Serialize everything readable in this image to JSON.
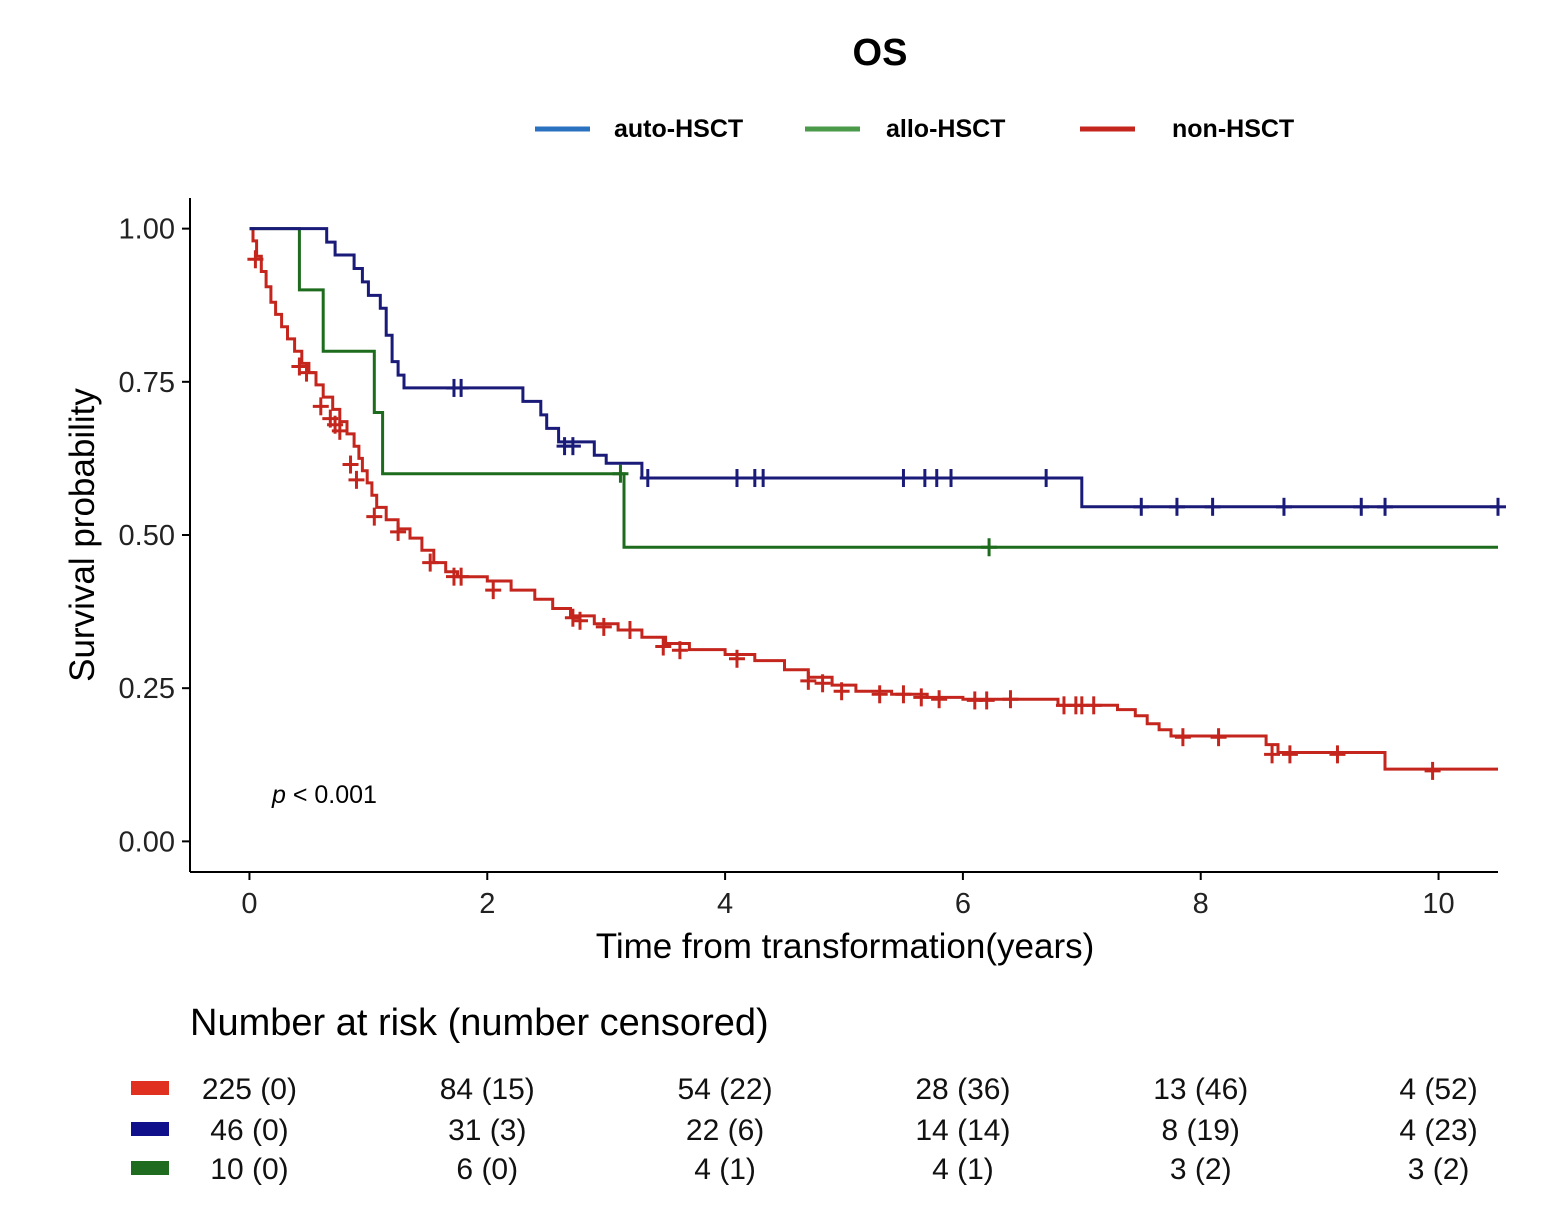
{
  "chart_data": {
    "type": "line",
    "title": "OS",
    "xlabel": "Time from transformation(years)",
    "ylabel": "Survival probability",
    "xlim": [
      -0.5,
      10.5
    ],
    "ylim": [
      -0.05,
      1.05
    ],
    "x_ticks": [
      0,
      2,
      4,
      6,
      8,
      10
    ],
    "x_tick_labels": [
      "0",
      "2",
      "4",
      "6",
      "8",
      "10"
    ],
    "y_ticks": [
      0,
      0.25,
      0.5,
      0.75,
      1.0
    ],
    "y_tick_labels": [
      "0.00",
      "0.25",
      "0.50",
      "0.75",
      "1.00"
    ],
    "grid": false,
    "legend_position": "top",
    "annotation": {
      "italic": "p",
      "text": " < 0.001"
    },
    "legend": [
      {
        "label": "auto-HSCT",
        "color": "#2a72c0"
      },
      {
        "label": "allo-HSCT",
        "color": "#4a9a4a"
      },
      {
        "label": "non-HSCT",
        "color": "#c4261e"
      }
    ],
    "series": [
      {
        "name": "auto-HSCT",
        "color": "#1a1a78",
        "steps": [
          [
            0,
            1.0
          ],
          [
            0.65,
            1.0
          ],
          [
            0.65,
            0.978
          ],
          [
            0.72,
            0.978
          ],
          [
            0.72,
            0.957
          ],
          [
            0.88,
            0.957
          ],
          [
            0.88,
            0.935
          ],
          [
            0.95,
            0.935
          ],
          [
            0.95,
            0.913
          ],
          [
            1.0,
            0.913
          ],
          [
            1.0,
            0.891
          ],
          [
            1.1,
            0.891
          ],
          [
            1.1,
            0.87
          ],
          [
            1.15,
            0.87
          ],
          [
            1.15,
            0.826
          ],
          [
            1.2,
            0.826
          ],
          [
            1.2,
            0.783
          ],
          [
            1.25,
            0.783
          ],
          [
            1.25,
            0.761
          ],
          [
            1.3,
            0.761
          ],
          [
            1.3,
            0.74
          ],
          [
            2.3,
            0.74
          ],
          [
            2.3,
            0.718
          ],
          [
            2.45,
            0.718
          ],
          [
            2.45,
            0.696
          ],
          [
            2.5,
            0.696
          ],
          [
            2.5,
            0.674
          ],
          [
            2.6,
            0.674
          ],
          [
            2.6,
            0.652
          ],
          [
            2.9,
            0.652
          ],
          [
            2.9,
            0.63
          ],
          [
            3.0,
            0.63
          ],
          [
            3.0,
            0.617
          ],
          [
            3.3,
            0.617
          ],
          [
            3.3,
            0.593
          ],
          [
            7.0,
            0.593
          ],
          [
            7.0,
            0.546
          ],
          [
            10.5,
            0.546
          ]
        ],
        "censored": [
          [
            1.72,
            0.74
          ],
          [
            1.78,
            0.74
          ],
          [
            2.65,
            0.645
          ],
          [
            2.72,
            0.645
          ],
          [
            3.35,
            0.593
          ],
          [
            4.1,
            0.593
          ],
          [
            4.25,
            0.593
          ],
          [
            4.32,
            0.593
          ],
          [
            5.5,
            0.593
          ],
          [
            5.68,
            0.593
          ],
          [
            5.78,
            0.593
          ],
          [
            5.9,
            0.593
          ],
          [
            6.7,
            0.593
          ],
          [
            7.5,
            0.546
          ],
          [
            7.8,
            0.546
          ],
          [
            8.1,
            0.546
          ],
          [
            8.7,
            0.546
          ],
          [
            9.35,
            0.546
          ],
          [
            9.55,
            0.546
          ],
          [
            10.5,
            0.546
          ]
        ]
      },
      {
        "name": "allo-HSCT",
        "color": "#1d6b1d",
        "steps": [
          [
            0,
            1.0
          ],
          [
            0.42,
            1.0
          ],
          [
            0.42,
            0.9
          ],
          [
            0.62,
            0.9
          ],
          [
            0.62,
            0.8
          ],
          [
            1.05,
            0.8
          ],
          [
            1.05,
            0.7
          ],
          [
            1.12,
            0.7
          ],
          [
            1.12,
            0.6
          ],
          [
            3.15,
            0.6
          ],
          [
            3.15,
            0.48
          ],
          [
            10.5,
            0.48
          ]
        ],
        "censored": [
          [
            3.12,
            0.6
          ],
          [
            6.22,
            0.48
          ]
        ]
      },
      {
        "name": "non-HSCT",
        "color": "#c4261e",
        "steps": [
          [
            0,
            1.0
          ],
          [
            0.03,
            0.98
          ],
          [
            0.06,
            0.955
          ],
          [
            0.1,
            0.93
          ],
          [
            0.14,
            0.905
          ],
          [
            0.18,
            0.88
          ],
          [
            0.22,
            0.86
          ],
          [
            0.27,
            0.84
          ],
          [
            0.32,
            0.82
          ],
          [
            0.38,
            0.8
          ],
          [
            0.44,
            0.78
          ],
          [
            0.5,
            0.765
          ],
          [
            0.56,
            0.745
          ],
          [
            0.62,
            0.725
          ],
          [
            0.7,
            0.705
          ],
          [
            0.76,
            0.685
          ],
          [
            0.82,
            0.665
          ],
          [
            0.88,
            0.645
          ],
          [
            0.92,
            0.625
          ],
          [
            0.95,
            0.605
          ],
          [
            0.99,
            0.585
          ],
          [
            1.03,
            0.565
          ],
          [
            1.07,
            0.545
          ],
          [
            1.15,
            0.525
          ],
          [
            1.25,
            0.51
          ],
          [
            1.35,
            0.495
          ],
          [
            1.45,
            0.475
          ],
          [
            1.55,
            0.455
          ],
          [
            1.65,
            0.44
          ],
          [
            1.75,
            0.432
          ],
          [
            2.0,
            0.425
          ],
          [
            2.2,
            0.41
          ],
          [
            2.4,
            0.395
          ],
          [
            2.55,
            0.38
          ],
          [
            2.7,
            0.368
          ],
          [
            2.9,
            0.355
          ],
          [
            3.1,
            0.345
          ],
          [
            3.3,
            0.333
          ],
          [
            3.5,
            0.323
          ],
          [
            3.7,
            0.313
          ],
          [
            4.0,
            0.305
          ],
          [
            4.25,
            0.295
          ],
          [
            4.5,
            0.28
          ],
          [
            4.7,
            0.268
          ],
          [
            4.9,
            0.255
          ],
          [
            5.1,
            0.245
          ],
          [
            5.4,
            0.24
          ],
          [
            5.7,
            0.235
          ],
          [
            6.0,
            0.232
          ],
          [
            6.4,
            0.232
          ],
          [
            6.8,
            0.222
          ],
          [
            7.15,
            0.222
          ],
          [
            7.3,
            0.215
          ],
          [
            7.45,
            0.205
          ],
          [
            7.55,
            0.192
          ],
          [
            7.65,
            0.182
          ],
          [
            7.75,
            0.172
          ],
          [
            8.4,
            0.172
          ],
          [
            8.55,
            0.158
          ],
          [
            8.65,
            0.145
          ],
          [
            9.55,
            0.145
          ],
          [
            9.55,
            0.118
          ],
          [
            10.5,
            0.118
          ]
        ],
        "censored": [
          [
            0.05,
            0.95
          ],
          [
            0.42,
            0.775
          ],
          [
            0.48,
            0.765
          ],
          [
            0.6,
            0.71
          ],
          [
            0.68,
            0.69
          ],
          [
            0.72,
            0.68
          ],
          [
            0.76,
            0.67
          ],
          [
            0.85,
            0.615
          ],
          [
            0.9,
            0.59
          ],
          [
            1.05,
            0.53
          ],
          [
            1.25,
            0.505
          ],
          [
            1.52,
            0.455
          ],
          [
            1.72,
            0.432
          ],
          [
            1.78,
            0.432
          ],
          [
            2.05,
            0.41
          ],
          [
            2.72,
            0.365
          ],
          [
            2.78,
            0.36
          ],
          [
            2.98,
            0.35
          ],
          [
            3.2,
            0.345
          ],
          [
            3.48,
            0.318
          ],
          [
            3.62,
            0.312
          ],
          [
            4.1,
            0.298
          ],
          [
            4.7,
            0.262
          ],
          [
            4.82,
            0.258
          ],
          [
            4.98,
            0.245
          ],
          [
            5.3,
            0.24
          ],
          [
            5.5,
            0.24
          ],
          [
            5.65,
            0.235
          ],
          [
            5.8,
            0.232
          ],
          [
            6.1,
            0.23
          ],
          [
            6.2,
            0.23
          ],
          [
            6.4,
            0.232
          ],
          [
            6.85,
            0.222
          ],
          [
            6.95,
            0.222
          ],
          [
            7.0,
            0.222
          ],
          [
            7.1,
            0.222
          ],
          [
            7.85,
            0.17
          ],
          [
            8.15,
            0.17
          ],
          [
            8.6,
            0.142
          ],
          [
            8.75,
            0.142
          ],
          [
            9.15,
            0.142
          ],
          [
            9.95,
            0.115
          ]
        ]
      }
    ],
    "risk_table": {
      "title": "Number at risk (number censored)",
      "times": [
        0,
        2,
        4,
        6,
        8,
        10
      ],
      "rows": [
        {
          "group": "non-HSCT",
          "color": "#e03020",
          "cells": [
            "225 (0)",
            "84 (15)",
            "54 (22)",
            "28 (36)",
            "13 (46)",
            "4 (52)"
          ]
        },
        {
          "group": "auto-HSCT",
          "color": "#10108a",
          "cells": [
            "46 (0)",
            "31 (3)",
            "22 (6)",
            "14 (14)",
            "8 (19)",
            "4 (23)"
          ]
        },
        {
          "group": "allo-HSCT",
          "color": "#1f6b1f",
          "cells": [
            "10 (0)",
            "6 (0)",
            "4 (1)",
            "4 (1)",
            "3 (2)",
            "3 (2)"
          ]
        }
      ]
    }
  }
}
